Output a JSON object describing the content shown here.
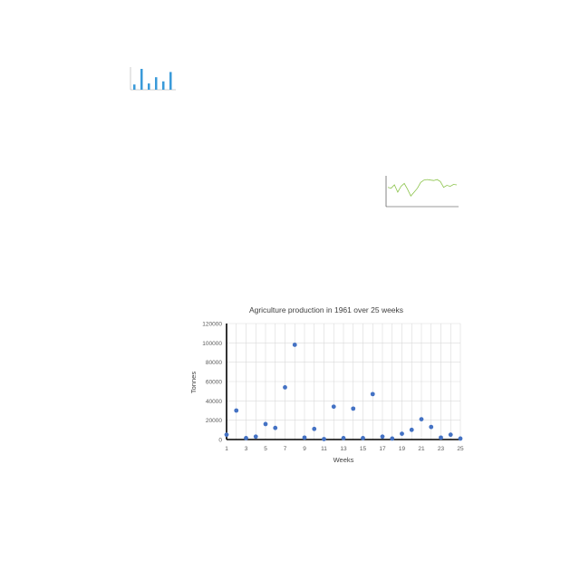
{
  "chart_data": {
    "type": "scatter",
    "title": "Agriculture production in 1961 over 25 weeks",
    "xlabel": "Weeks",
    "ylabel": "Tonnes",
    "xlim": [
      1,
      25
    ],
    "ylim": [
      0,
      120000
    ],
    "xticks": [
      "1",
      "3",
      "5",
      "7",
      "9",
      "11",
      "13",
      "15",
      "17",
      "19",
      "21",
      "23",
      "25"
    ],
    "yticks": [
      "0",
      "20000",
      "40000",
      "60000",
      "80000",
      "100000",
      "120000"
    ],
    "grid": true,
    "marker_color": "#4472c4",
    "x": [
      1,
      2,
      3,
      4,
      5,
      6,
      7,
      8,
      9,
      10,
      11,
      12,
      13,
      14,
      15,
      16,
      17,
      18,
      19,
      20,
      21,
      22,
      23,
      24,
      25
    ],
    "y": [
      5000,
      30000,
      1500,
      3000,
      16000,
      12000,
      54000,
      98000,
      2000,
      11000,
      500,
      34000,
      1500,
      32000,
      1500,
      47000,
      3000,
      1000,
      6000,
      10000,
      21000,
      13000,
      2000,
      5000,
      1000
    ]
  },
  "thumbnails": {
    "bar_color": "#3a9ad9",
    "bar_values": [
      5,
      20,
      6,
      12,
      8,
      17
    ],
    "line_color": "#8bc34a",
    "line_values": [
      40,
      38,
      45,
      30,
      42,
      48,
      36,
      22,
      30,
      38,
      50,
      55,
      56,
      55,
      54,
      56,
      52,
      40,
      44,
      42,
      46,
      45
    ]
  }
}
